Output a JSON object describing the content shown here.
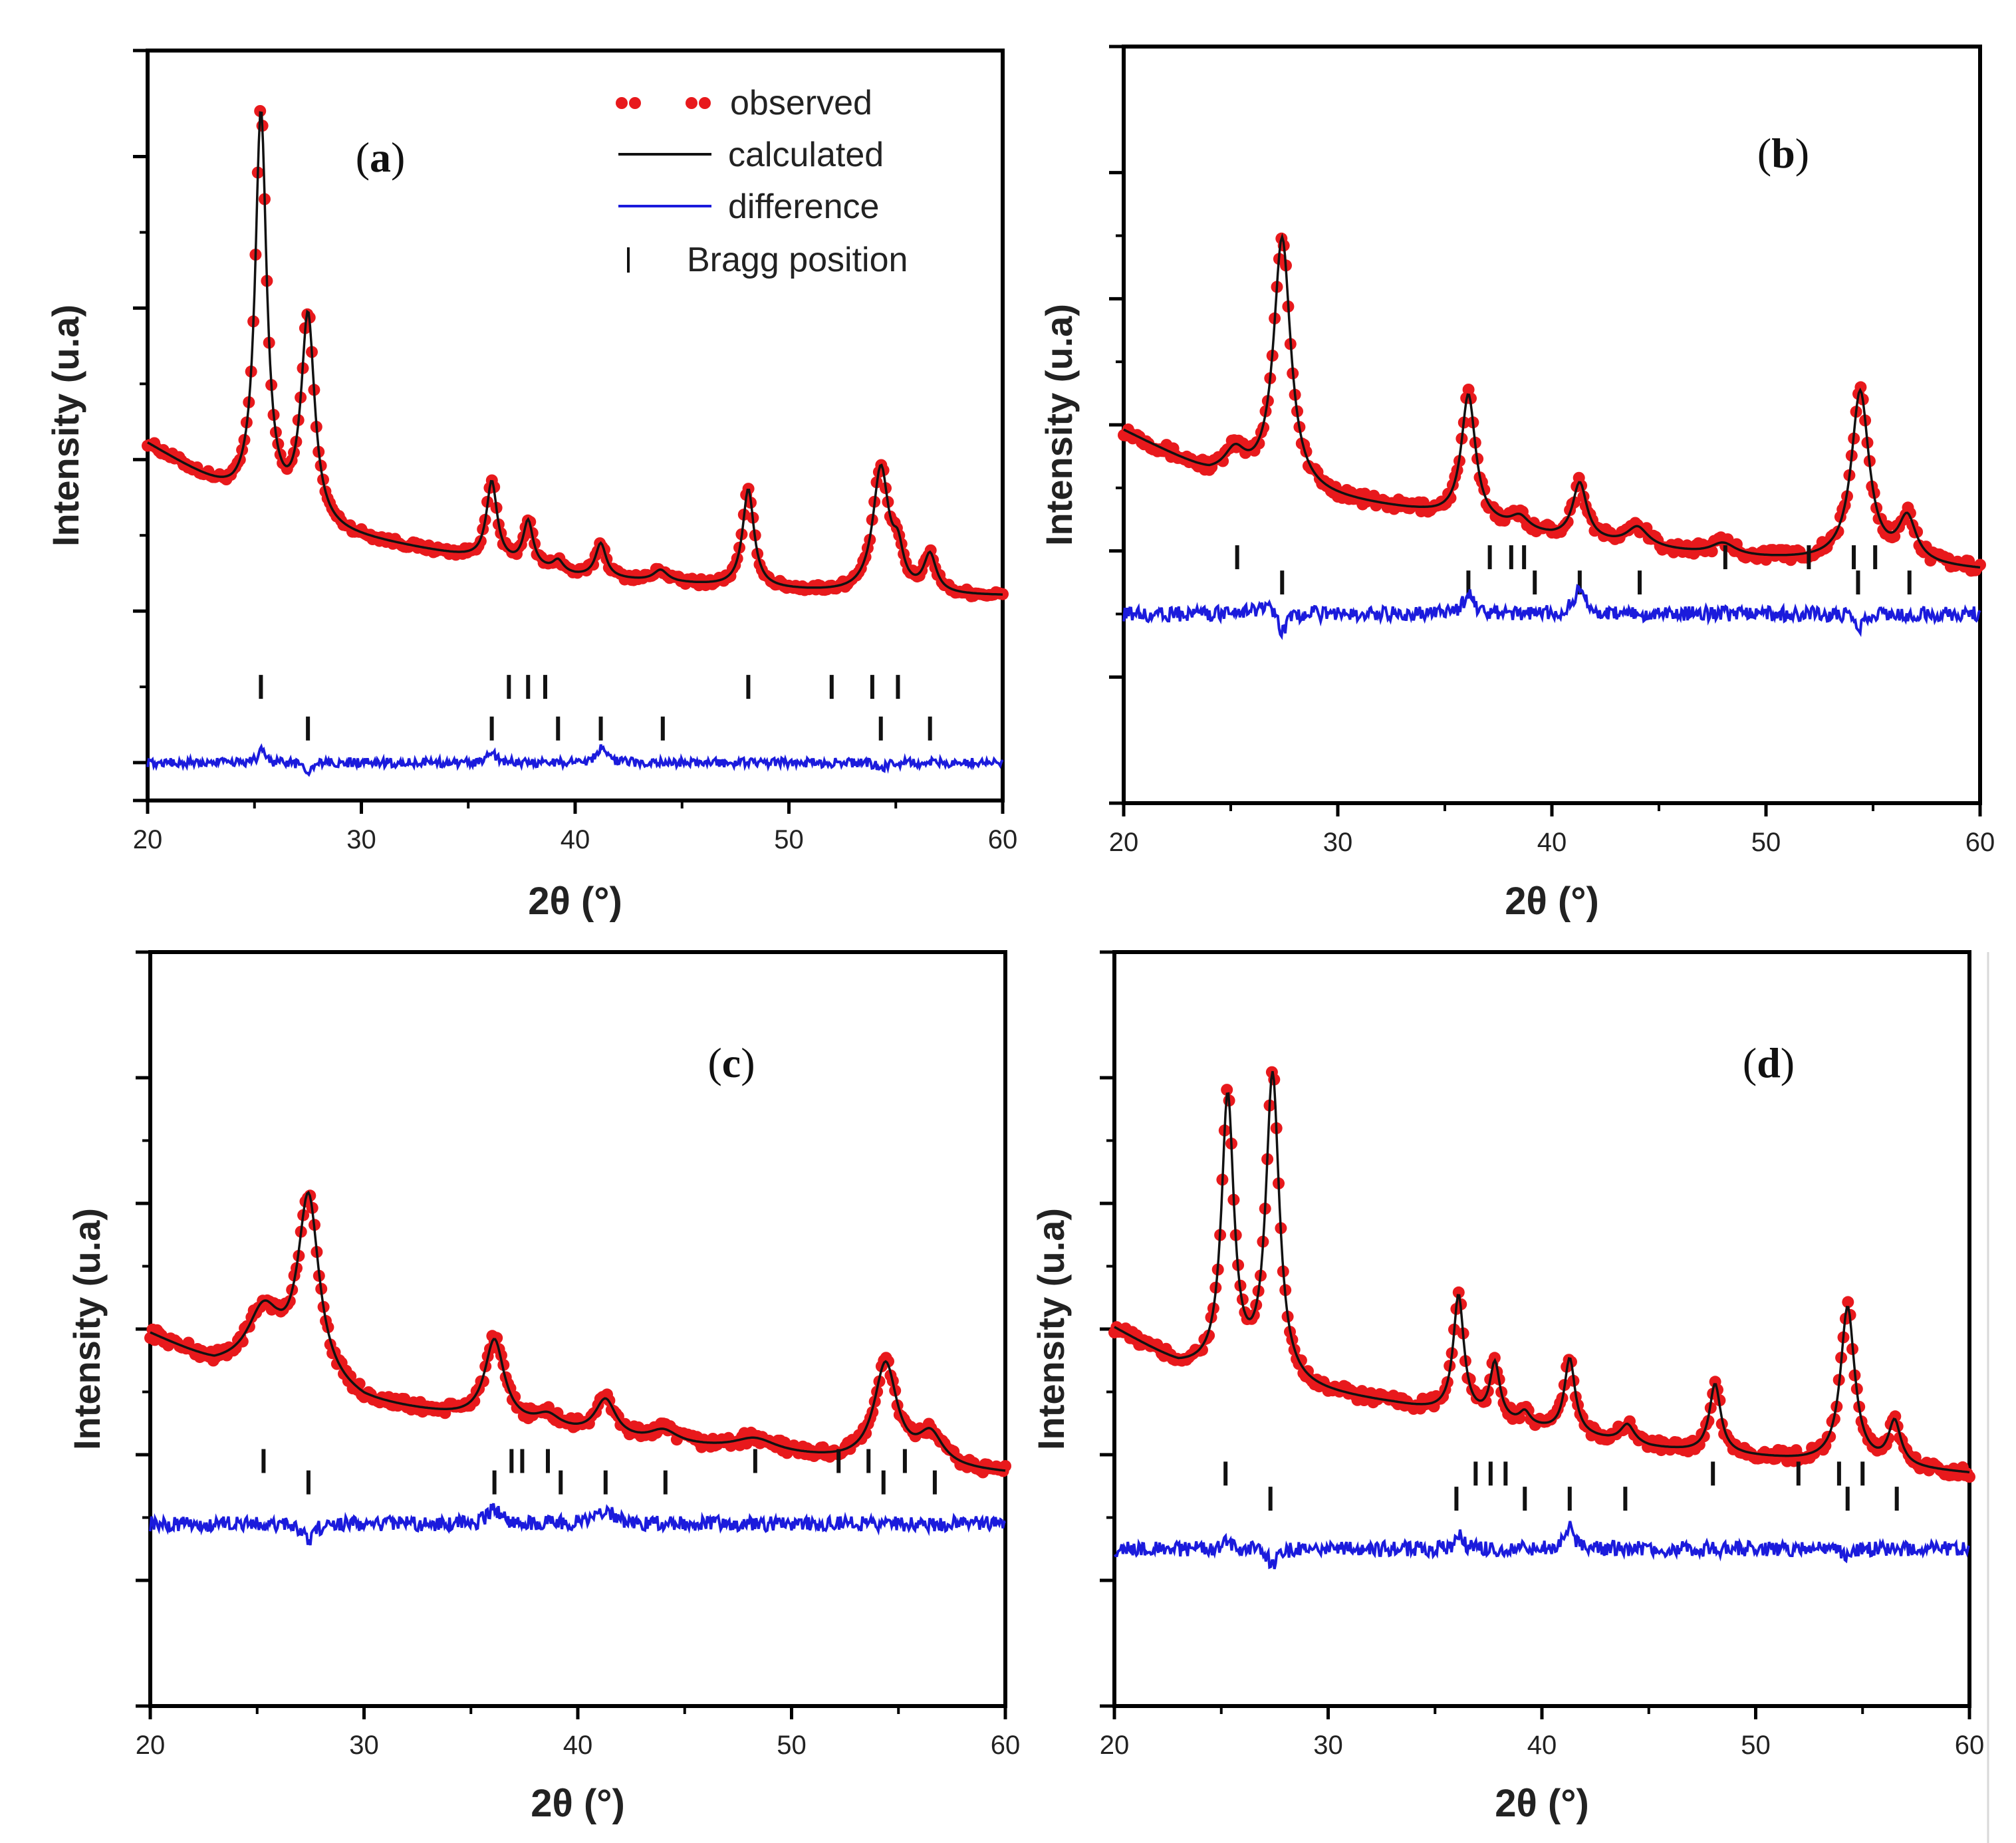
{
  "colors": {
    "observed": "#e8191c",
    "calculated": "#111111",
    "difference": "#1b1bdc",
    "bragg": "#111111",
    "frame": "#000000"
  },
  "legend": {
    "observed": "observed",
    "calculated": "calculated",
    "difference": "difference",
    "bragg": "Bragg position"
  },
  "chart_data": [
    {
      "type": "line",
      "panel": "a",
      "panel_label": "a",
      "xlabel": "2θ (°)",
      "ylabel": "Intensity (u.a)",
      "xlim": [
        20,
        60
      ],
      "ylim": [
        -2.5,
        7.4
      ],
      "x_ticks": [
        20,
        30,
        40,
        50,
        60
      ],
      "y_ticks_major": [
        -2,
        0,
        2,
        4,
        6
      ],
      "legend_position": "top-right",
      "baseline": [
        [
          20,
          2.2
        ],
        [
          24,
          1.5
        ],
        [
          28,
          1.05
        ],
        [
          34,
          0.75
        ],
        [
          40,
          0.45
        ],
        [
          48,
          0.3
        ],
        [
          55,
          0.2
        ],
        [
          60,
          0.2
        ]
      ],
      "peaks": [
        [
          25.3,
          5.2,
          0.32
        ],
        [
          27.5,
          2.75,
          0.38
        ],
        [
          36.1,
          1.05,
          0.3
        ],
        [
          37.8,
          0.6,
          0.28
        ],
        [
          39.2,
          0.15,
          0.3
        ],
        [
          41.2,
          0.45,
          0.3
        ],
        [
          44.0,
          0.15,
          0.4
        ],
        [
          48.1,
          1.3,
          0.32
        ],
        [
          54.3,
          1.65,
          0.45
        ],
        [
          55.1,
          0.45,
          0.3
        ],
        [
          56.6,
          0.5,
          0.35
        ]
      ],
      "bragg_row1": [
        25.3,
        36.9,
        37.8,
        38.6,
        48.1,
        52.0,
        53.9,
        55.1
      ],
      "bragg_row2": [
        27.5,
        36.1,
        39.2,
        41.2,
        44.1,
        54.3,
        56.6
      ],
      "bragg_row1_y": -1.0,
      "bragg_row2_y": -1.55,
      "difference_offset": -2.0,
      "difference_features": [
        [
          25.3,
          0.2,
          0.15
        ],
        [
          27.5,
          -0.15,
          0.2
        ],
        [
          36.1,
          0.15,
          0.2
        ],
        [
          41.2,
          0.2,
          0.25
        ],
        [
          54.3,
          -0.1,
          0.2
        ]
      ]
    },
    {
      "type": "line",
      "panel": "b",
      "panel_label": "b",
      "xlabel": "2θ (°)",
      "ylabel": "Intensity (u.a)",
      "xlim": [
        20,
        60
      ],
      "ylim": [
        -2.0,
        4.0
      ],
      "x_ticks": [
        20,
        30,
        40,
        50,
        60
      ],
      "y_ticks_major": [
        -1,
        0,
        1,
        2,
        3
      ],
      "legend_position": "none",
      "baseline": [
        [
          20,
          0.95
        ],
        [
          24,
          0.6
        ],
        [
          28,
          0.45
        ],
        [
          34,
          0.3
        ],
        [
          40,
          0.1
        ],
        [
          48,
          -0.05
        ],
        [
          55,
          -0.1
        ],
        [
          60,
          -0.15
        ]
      ],
      "peaks": [
        [
          25.2,
          0.2,
          0.6
        ],
        [
          27.4,
          2.0,
          0.48
        ],
        [
          36.1,
          1.0,
          0.4
        ],
        [
          38.5,
          0.1,
          0.5
        ],
        [
          41.3,
          0.45,
          0.4
        ],
        [
          44.0,
          0.15,
          0.6
        ],
        [
          48.0,
          0.1,
          0.7
        ],
        [
          54.4,
          1.35,
          0.5
        ],
        [
          56.6,
          0.35,
          0.5
        ]
      ],
      "bragg_row1": [
        25.3,
        37.1,
        38.1,
        38.7,
        48.1,
        52.0,
        54.1,
        55.1
      ],
      "bragg_row2": [
        27.4,
        36.1,
        39.2,
        41.3,
        44.1,
        54.3,
        56.7
      ],
      "bragg_row1_y": -0.05,
      "bragg_row2_y": -0.25,
      "difference_offset": -0.5,
      "difference_features": [
        [
          26.7,
          0.08,
          0.5
        ],
        [
          27.4,
          -0.18,
          0.2
        ],
        [
          36.1,
          0.15,
          0.3
        ],
        [
          41.3,
          0.18,
          0.35
        ],
        [
          54.4,
          -0.1,
          0.25
        ]
      ]
    },
    {
      "type": "line",
      "panel": "c",
      "panel_label": "c",
      "xlabel": "2θ (°)",
      "ylabel": "Intensity (u.a)",
      "xlim": [
        20,
        60
      ],
      "ylim": [
        -2.0,
        4.0
      ],
      "x_ticks": [
        20,
        30,
        40,
        50,
        60
      ],
      "y_ticks_major": [
        -1,
        0,
        1,
        2,
        3
      ],
      "legend_position": "none",
      "baseline": [
        [
          20,
          0.95
        ],
        [
          23,
          0.7
        ],
        [
          26,
          0.65
        ],
        [
          30,
          0.4
        ],
        [
          36,
          0.25
        ],
        [
          42,
          0.1
        ],
        [
          48,
          0.02
        ],
        [
          55,
          -0.1
        ],
        [
          60,
          -0.15
        ]
      ],
      "peaks": [
        [
          25.3,
          0.45,
          0.9
        ],
        [
          27.4,
          1.45,
          0.6
        ],
        [
          36.1,
          0.65,
          0.55
        ],
        [
          38.6,
          0.1,
          0.7
        ],
        [
          41.3,
          0.3,
          0.6
        ],
        [
          44.0,
          0.1,
          0.8
        ],
        [
          48.3,
          0.1,
          1.2
        ],
        [
          54.4,
          0.8,
          0.65
        ],
        [
          56.5,
          0.25,
          0.7
        ]
      ],
      "bragg_row1": [
        25.3,
        36.9,
        37.4,
        38.6,
        48.3,
        52.2,
        53.6,
        55.3
      ],
      "bragg_row2": [
        27.4,
        36.1,
        39.2,
        41.3,
        44.1,
        54.3,
        56.7
      ],
      "bragg_row1_y": -0.05,
      "bragg_row2_y": -0.22,
      "difference_offset": -0.55,
      "difference_features": [
        [
          27.4,
          -0.12,
          0.3
        ],
        [
          36.1,
          0.12,
          0.35
        ],
        [
          41.3,
          0.12,
          0.4
        ]
      ]
    },
    {
      "type": "line",
      "panel": "d",
      "panel_label": "d",
      "xlabel": "2θ (°)",
      "ylabel": "Intensity (u.a)",
      "xlim": [
        20,
        60
      ],
      "ylim": [
        -2.0,
        4.0
      ],
      "x_ticks": [
        20,
        30,
        40,
        50,
        60
      ],
      "y_ticks_major": [
        -1,
        0,
        1,
        2,
        3
      ],
      "legend_position": "none",
      "baseline": [
        [
          20,
          1.0
        ],
        [
          23,
          0.7
        ],
        [
          27,
          0.55
        ],
        [
          33,
          0.4
        ],
        [
          38,
          0.25
        ],
        [
          45,
          0.05
        ],
        [
          52,
          -0.05
        ],
        [
          56,
          -0.1
        ],
        [
          60,
          -0.15
        ]
      ],
      "peaks": [
        [
          25.3,
          2.2,
          0.35
        ],
        [
          27.4,
          2.45,
          0.38
        ],
        [
          36.1,
          0.95,
          0.3
        ],
        [
          37.8,
          0.45,
          0.28
        ],
        [
          39.2,
          0.1,
          0.3
        ],
        [
          41.3,
          0.6,
          0.3
        ],
        [
          44.0,
          0.15,
          0.4
        ],
        [
          48.1,
          0.55,
          0.32
        ],
        [
          54.3,
          1.25,
          0.4
        ],
        [
          56.5,
          0.35,
          0.35
        ]
      ],
      "bragg_row1": [
        25.2,
        36.9,
        37.6,
        38.3,
        48.0,
        52.0,
        53.9,
        55.0
      ],
      "bragg_row2": [
        27.3,
        36.0,
        39.2,
        41.3,
        43.9,
        54.3,
        56.6
      ],
      "bragg_row1_y": -0.15,
      "bragg_row2_y": -0.35,
      "difference_offset": -0.75,
      "difference_features": [
        [
          25.3,
          0.08,
          0.2
        ],
        [
          27.4,
          -0.15,
          0.2
        ],
        [
          36.1,
          0.12,
          0.2
        ],
        [
          41.3,
          0.18,
          0.25
        ],
        [
          54.3,
          -0.08,
          0.2
        ]
      ]
    }
  ]
}
